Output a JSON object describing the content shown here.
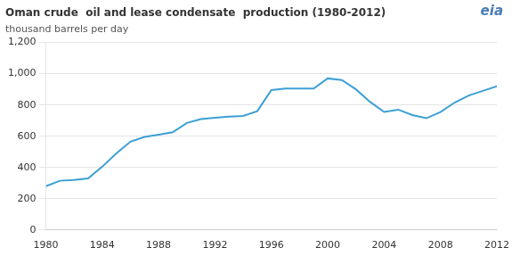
{
  "chart_data": {
    "type": "line",
    "title": "Oman crude  oil and lease condensate  production (1980-2012)",
    "subtitle": "thousand barrels per day",
    "annotations": [
      {
        "text": "eia",
        "color": "#4a7db5"
      }
    ],
    "x": [
      1980,
      1981,
      1982,
      1983,
      1984,
      1985,
      1986,
      1987,
      1988,
      1989,
      1990,
      1991,
      1992,
      1993,
      1994,
      1995,
      1996,
      1997,
      1998,
      1999,
      2000,
      2001,
      2002,
      2003,
      2004,
      2005,
      2006,
      2007,
      2008,
      2009,
      2010,
      2011,
      2012
    ],
    "values": [
      280,
      315,
      320,
      330,
      405,
      490,
      565,
      595,
      610,
      625,
      685,
      710,
      718,
      725,
      730,
      760,
      895,
      905,
      905,
      905,
      970,
      960,
      900,
      820,
      755,
      770,
      735,
      715,
      755,
      815,
      860,
      890,
      920
    ],
    "color": "#3c9fd4",
    "xlim": [
      1980,
      2012
    ],
    "xticks": [
      1980,
      1984,
      1988,
      1992,
      1996,
      2000,
      2004,
      2008,
      2012
    ],
    "ylim": [
      0,
      1200
    ],
    "yticks": [
      0,
      200,
      400,
      600,
      800,
      {
        "value": 1000,
        "label": "1,000"
      },
      {
        "value": 1200,
        "label": "1,200"
      }
    ],
    "grid": "y"
  }
}
